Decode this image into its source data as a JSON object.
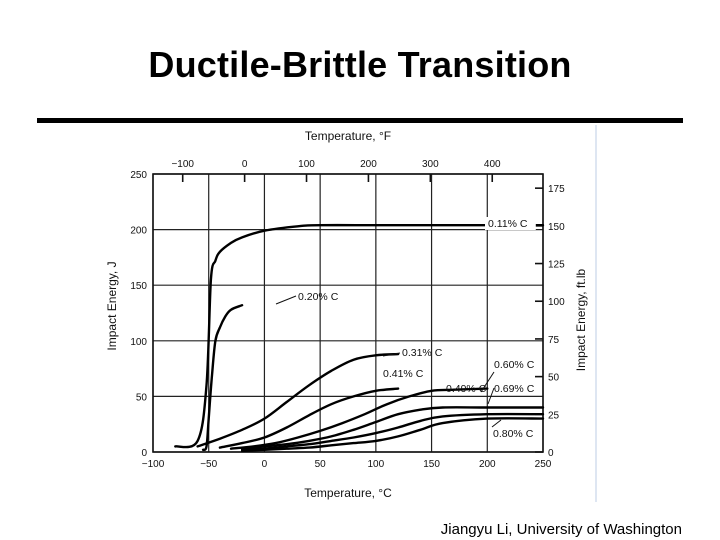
{
  "slide": {
    "title": "Ductile-Brittle Transition",
    "footer": "Jiangyu Li, University of Washington"
  },
  "chart_data": {
    "type": "line",
    "title": "",
    "xlabel": "Temperature, °C",
    "ylabel": "Impact Energy, J",
    "xlabel_top": "Temperature, °F",
    "ylabel_right": "Impact Energy, ft.lb",
    "xlim": [
      -100,
      250
    ],
    "ylim": [
      0,
      250
    ],
    "xticks": [
      -100,
      -50,
      0,
      50,
      100,
      150,
      200,
      250
    ],
    "yticks": [
      0,
      50,
      100,
      150,
      200,
      250
    ],
    "xticks_top": [
      -100,
      0,
      100,
      200,
      300,
      400
    ],
    "yticks_right": [
      0,
      25,
      50,
      75,
      100,
      125,
      150,
      175
    ],
    "grid": true,
    "series": [
      {
        "name": "0.11% C",
        "x": [
          -80,
          -60,
          -52,
          -48,
          -44,
          -40,
          -30,
          -20,
          0,
          30,
          50,
          100,
          150,
          200,
          250
        ],
        "y": [
          5,
          10,
          60,
          155,
          172,
          180,
          188,
          193,
          199,
          203,
          204,
          204,
          204,
          204,
          204
        ]
      },
      {
        "name": "0.20% C",
        "x": [
          -55,
          -52,
          -50,
          -47,
          -44,
          -40,
          -35,
          -30,
          -20
        ],
        "y": [
          2,
          5,
          30,
          70,
          100,
          112,
          122,
          128,
          132
        ]
      },
      {
        "name": "0.31% C",
        "x": [
          -60,
          -40,
          -20,
          0,
          20,
          40,
          60,
          80,
          100,
          120
        ],
        "y": [
          5,
          12,
          20,
          30,
          45,
          60,
          73,
          83,
          87,
          88
        ]
      },
      {
        "name": "0.41% C",
        "x": [
          -40,
          -20,
          0,
          20,
          40,
          60,
          80,
          100,
          120
        ],
        "y": [
          4,
          8,
          13,
          22,
          33,
          43,
          50,
          55,
          57
        ]
      },
      {
        "name": "0.49% C",
        "x": [
          -30,
          -10,
          10,
          30,
          50,
          70,
          90,
          110,
          130,
          150,
          170,
          200
        ],
        "y": [
          3,
          5,
          8,
          13,
          19,
          26,
          34,
          43,
          50,
          55,
          56,
          57
        ]
      },
      {
        "name": "0.60% C",
        "x": [
          -20,
          0,
          20,
          40,
          60,
          80,
          100,
          120,
          140,
          160,
          200,
          250
        ],
        "y": [
          3,
          5,
          7,
          10,
          14,
          20,
          27,
          34,
          38,
          40,
          40,
          40
        ]
      },
      {
        "name": "0.69% C",
        "x": [
          -20,
          0,
          20,
          40,
          60,
          80,
          100,
          120,
          140,
          160,
          200,
          250
        ],
        "y": [
          2,
          3,
          5,
          7,
          10,
          13,
          17,
          22,
          28,
          32,
          34,
          34
        ]
      },
      {
        "name": "0.80% C",
        "x": [
          -20,
          0,
          20,
          40,
          60,
          80,
          100,
          120,
          140,
          160,
          200,
          250
        ],
        "y": [
          1,
          2,
          3,
          4,
          6,
          8,
          10,
          14,
          20,
          26,
          30,
          30
        ]
      }
    ]
  }
}
